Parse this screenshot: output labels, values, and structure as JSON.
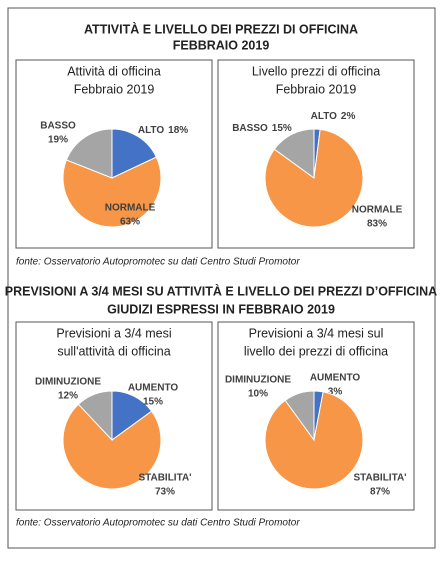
{
  "sections": [
    {
      "title": [
        "ATTIVITÀ E LIVELLO DEI PREZZI DI OFFICINA",
        "FEBBRAIO 2019"
      ],
      "source": "fonte: Osservatorio Autopromotec su dati Centro Studi Promotor"
    },
    {
      "title": [
        "PREVISIONI A 3/4 MESI SU ATTIVITÀ E LIVELLO DEI PREZZI D’OFFICINA",
        "GIUDIZI ESPRESSI IN FEBBRAIO 2019"
      ],
      "source": "fonte: Osservatorio Autopromotec su dati Centro Studi Promotor"
    }
  ],
  "chart_data": [
    {
      "type": "pie",
      "title": [
        "Attività di officina",
        "Febbraio 2019"
      ],
      "categories": [
        "ALTO",
        "NORMALE",
        "BASSO"
      ],
      "values": [
        18,
        63,
        19
      ],
      "value_labels": [
        "18%",
        "63%",
        "19%"
      ],
      "colors": [
        "#4472c4",
        "#f79646",
        "#a5a5a5"
      ]
    },
    {
      "type": "pie",
      "title": [
        "Livello prezzi di officina",
        "Febbraio 2019"
      ],
      "categories": [
        "ALTO",
        "NORMALE",
        "BASSO"
      ],
      "values": [
        2,
        83,
        15
      ],
      "value_labels": [
        "2%",
        "83%",
        "15%"
      ],
      "colors": [
        "#4472c4",
        "#f79646",
        "#a5a5a5"
      ]
    },
    {
      "type": "pie",
      "title": [
        "Previsioni a 3/4 mesi",
        "sull'attività di officina"
      ],
      "categories": [
        "AUMENTO",
        "STABILITA'",
        "DIMINUZIONE"
      ],
      "values": [
        15,
        73,
        12
      ],
      "value_labels": [
        "15%",
        "73%",
        "12%"
      ],
      "colors": [
        "#4472c4",
        "#f79646",
        "#a5a5a5"
      ]
    },
    {
      "type": "pie",
      "title": [
        "Previsioni a 3/4 mesi sul",
        "livello dei prezzi di officina"
      ],
      "categories": [
        "AUMENTO",
        "STABILITA'",
        "DIMINUZIONE"
      ],
      "values": [
        3,
        87,
        10
      ],
      "value_labels": [
        "3%",
        "87%",
        "10%"
      ],
      "colors": [
        "#4472c4",
        "#f79646",
        "#a5a5a5"
      ]
    }
  ]
}
